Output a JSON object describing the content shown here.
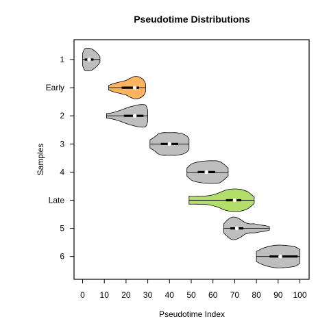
{
  "chart_data": {
    "type": "violin",
    "orientation": "horizontal",
    "title": "Pseudotime Distributions",
    "xlabel": "Pseudotime Index",
    "ylabel": "Samples",
    "xlim": [
      -3.4,
      104.6
    ],
    "xticks": [
      0,
      10,
      20,
      30,
      40,
      50,
      60,
      70,
      80,
      90,
      100
    ],
    "grid": false,
    "violins": [
      {
        "label": "1",
        "color": "#bebebe",
        "min": 0,
        "max": 8,
        "q1": 1,
        "median": 3,
        "q3": 5,
        "profile": [
          [
            0,
            0.55
          ],
          [
            1,
            0.95
          ],
          [
            2,
            1.0
          ],
          [
            3,
            1.0
          ],
          [
            4,
            0.95
          ],
          [
            5,
            0.85
          ],
          [
            6,
            0.7
          ],
          [
            7,
            0.5
          ],
          [
            8,
            0.25
          ]
        ]
      },
      {
        "label": "Early",
        "color": "#fdb462",
        "min": 12,
        "max": 29,
        "q1": 18,
        "median": 24,
        "q3": 26,
        "profile": [
          [
            12,
            0.2
          ],
          [
            14,
            0.35
          ],
          [
            16,
            0.45
          ],
          [
            18,
            0.55
          ],
          [
            20,
            0.65
          ],
          [
            22,
            0.85
          ],
          [
            24,
            1.0
          ],
          [
            26,
            0.95
          ],
          [
            28,
            0.7
          ],
          [
            29,
            0.35
          ]
        ]
      },
      {
        "label": "2",
        "color": "#bebebe",
        "min": 11,
        "max": 30,
        "q1": 19,
        "median": 24,
        "q3": 28,
        "profile": [
          [
            11,
            0.2
          ],
          [
            13,
            0.25
          ],
          [
            16,
            0.4
          ],
          [
            19,
            0.6
          ],
          [
            21,
            0.75
          ],
          [
            23,
            0.85
          ],
          [
            25,
            0.95
          ],
          [
            27,
            1.0
          ],
          [
            29,
            0.95
          ],
          [
            30,
            0.5
          ]
        ]
      },
      {
        "label": "3",
        "color": "#bebebe",
        "min": 31,
        "max": 49,
        "q1": 36,
        "median": 40,
        "q3": 44,
        "profile": [
          [
            31,
            0.35
          ],
          [
            33,
            0.6
          ],
          [
            35,
            0.9
          ],
          [
            37,
            1.0
          ],
          [
            40,
            1.0
          ],
          [
            43,
            1.0
          ],
          [
            46,
            0.9
          ],
          [
            48,
            0.7
          ],
          [
            49,
            0.45
          ]
        ]
      },
      {
        "label": "4",
        "color": "#bebebe",
        "min": 48,
        "max": 67,
        "q1": 53,
        "median": 57,
        "q3": 61,
        "profile": [
          [
            48,
            0.35
          ],
          [
            50,
            0.7
          ],
          [
            52,
            0.85
          ],
          [
            55,
            0.95
          ],
          [
            58,
            1.0
          ],
          [
            61,
            1.0
          ],
          [
            63,
            0.95
          ],
          [
            65,
            0.7
          ],
          [
            67,
            0.35
          ]
        ]
      },
      {
        "label": "Late",
        "color": "#b3de69",
        "min": 49,
        "max": 79,
        "q1": 66,
        "median": 70,
        "q3": 73,
        "profile": [
          [
            49,
            0.35
          ],
          [
            53,
            0.35
          ],
          [
            58,
            0.4
          ],
          [
            62,
            0.6
          ],
          [
            66,
            0.9
          ],
          [
            70,
            1.0
          ],
          [
            73,
            0.95
          ],
          [
            76,
            0.75
          ],
          [
            78,
            0.45
          ],
          [
            79,
            0.3
          ]
        ]
      },
      {
        "label": "5",
        "color": "#bebebe",
        "min": 65,
        "max": 86,
        "q1": 68,
        "median": 71,
        "q3": 74,
        "profile": [
          [
            65,
            0.4
          ],
          [
            67,
            0.8
          ],
          [
            69,
            1.0
          ],
          [
            71,
            0.95
          ],
          [
            73,
            0.75
          ],
          [
            75,
            0.5
          ],
          [
            77,
            0.4
          ],
          [
            79,
            0.4
          ],
          [
            82,
            0.3
          ],
          [
            84,
            0.25
          ],
          [
            86,
            0.15
          ]
        ]
      },
      {
        "label": "6",
        "color": "#bebebe",
        "min": 80,
        "max": 100,
        "q1": 86,
        "median": 91,
        "q3": 99,
        "profile": [
          [
            80,
            0.45
          ],
          [
            82,
            0.65
          ],
          [
            84,
            0.8
          ],
          [
            86,
            0.9
          ],
          [
            89,
            1.0
          ],
          [
            92,
            1.0
          ],
          [
            95,
            0.95
          ],
          [
            98,
            0.85
          ],
          [
            100,
            0.6
          ]
        ]
      }
    ]
  }
}
